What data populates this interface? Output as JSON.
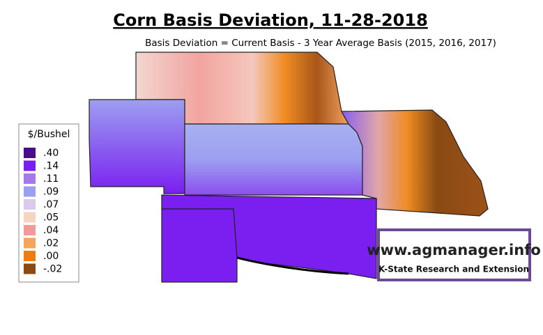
{
  "title": "Corn Basis Deviation, 11-28-2018",
  "subtitle": "Basis Deviation = Current Basis - 3 Year Average Basis (2015, 2016, 2017)",
  "legend": {
    "title": "$/Bushel",
    "items": [
      {
        "label": ".40",
        "color": "#4b0b8f"
      },
      {
        "label": ".14",
        "color": "#7b1ff0"
      },
      {
        "label": ".11",
        "color": "#a877ee"
      },
      {
        "label": ".09",
        "color": "#9c9ff0"
      },
      {
        "label": ".07",
        "color": "#ddc8f0"
      },
      {
        "label": ".05",
        "color": "#f6d4c2"
      },
      {
        "label": ".04",
        "color": "#f29a9a"
      },
      {
        "label": ".02",
        "color": "#f4a55a"
      },
      {
        "label": ".00",
        "color": "#ef7d0e"
      },
      {
        "label": "-.02",
        "color": "#8a4a12"
      }
    ]
  },
  "logo": {
    "url": "www.agmanager.info",
    "org": "K-State Research and Extension"
  }
}
